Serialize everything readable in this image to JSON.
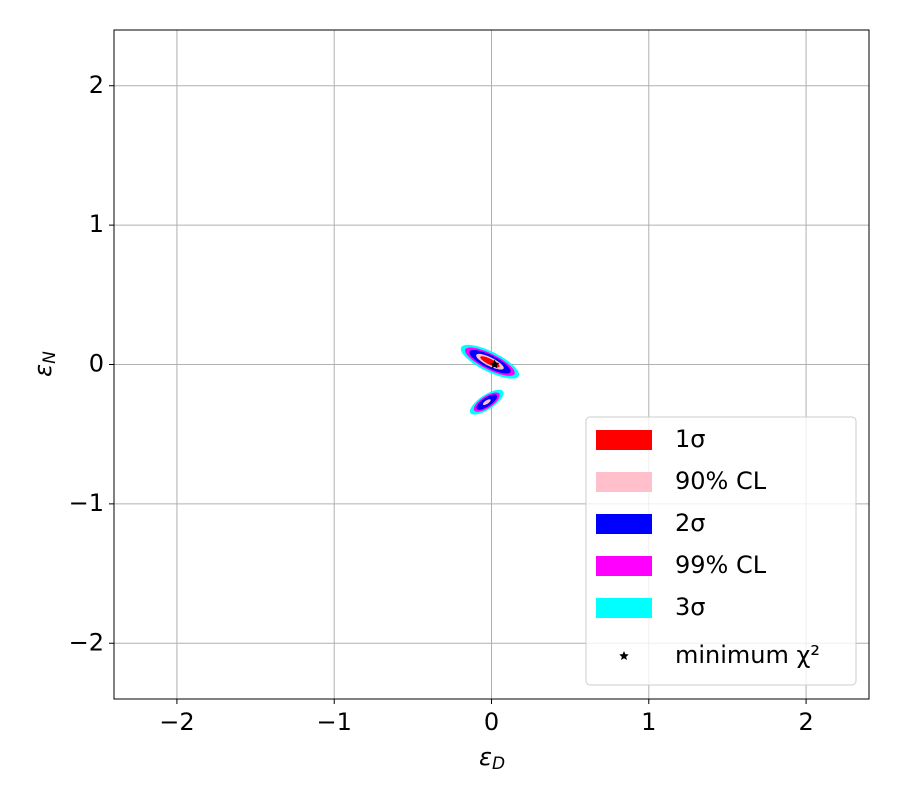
{
  "chart_data": {
    "type": "contour",
    "xlabel": "ε",
    "xlabel_sub": "D",
    "ylabel": "ε",
    "ylabel_sub": "N",
    "xlim": [
      -2.4,
      2.4
    ],
    "ylim": [
      -2.4,
      2.4
    ],
    "xticks": [
      {
        "value": -2,
        "label": "−2"
      },
      {
        "value": -1,
        "label": "−1"
      },
      0,
      1,
      2
    ],
    "yticks": [
      {
        "value": -2,
        "label": "−2"
      },
      {
        "value": -1,
        "label": "−1"
      },
      0,
      1,
      2
    ],
    "grid": true,
    "legend": "lower right",
    "series": [
      {
        "name": "1σ",
        "color": "#ff0000",
        "regions": [
          {
            "cx": -0.01,
            "cy": 0.02,
            "a": 0.07,
            "b": 0.02,
            "angle": -30
          }
        ]
      },
      {
        "name": "90% CL",
        "color": "#ffc0cb",
        "regions": [
          {
            "cx": -0.01,
            "cy": 0.02,
            "a": 0.1,
            "b": 0.03,
            "angle": -30
          },
          {
            "cx": -0.03,
            "cy": -0.27,
            "a": 0.03,
            "b": 0.012,
            "angle": 38
          }
        ]
      },
      {
        "name": "2σ",
        "color": "#0000ff",
        "regions": [
          {
            "cx": -0.01,
            "cy": 0.02,
            "a": 0.15,
            "b": 0.045,
            "angle": -30
          },
          {
            "cx": -0.03,
            "cy": -0.27,
            "a": 0.08,
            "b": 0.03,
            "angle": 38
          }
        ]
      },
      {
        "name": "99% CL",
        "color": "#ff00ff",
        "regions": [
          {
            "cx": -0.01,
            "cy": 0.02,
            "a": 0.18,
            "b": 0.055,
            "angle": -30
          },
          {
            "cx": -0.03,
            "cy": -0.27,
            "a": 0.1,
            "b": 0.04,
            "angle": 38
          }
        ]
      },
      {
        "name": "3σ",
        "color": "#00ffff",
        "regions": [
          {
            "cx": -0.01,
            "cy": 0.02,
            "a": 0.21,
            "b": 0.07,
            "angle": -30
          },
          {
            "cx": -0.03,
            "cy": -0.27,
            "a": 0.13,
            "b": 0.05,
            "angle": 38
          }
        ]
      }
    ],
    "minimum": {
      "name": "minimum χ²",
      "x": 0.02,
      "y": 0,
      "color": "#000000"
    }
  }
}
